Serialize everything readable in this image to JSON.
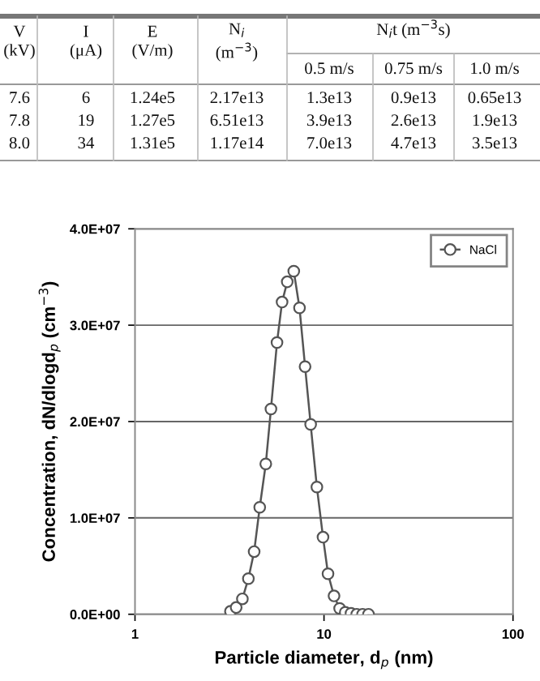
{
  "chart_data": [
    {
      "type": "other",
      "annotations": [
        "V\n(kV)",
        "I\n(μA)",
        "E\n(V/m)",
        "N$_{i}$\n(m$^{−3}$)",
        "N$_{i}$t (m$^{−3}$s)",
        "0.5 m/s",
        "0.75 m/s",
        "1.0 m/s",
        "7.6",
        "6",
        "1.24e5",
        "2.17e13",
        "1.3e13",
        "0.9e13",
        "0.65e13",
        "7.8",
        "19",
        "1.27e5",
        "6.51e13",
        "3.9e13",
        "2.6e13",
        "1.9e13",
        "8.0",
        "34",
        "1.31e5",
        "1.17e14",
        "7.0e13",
        "4.7e13",
        "3.5e13"
      ]
    },
    {
      "type": "line",
      "xlabel": "Particle diameter, d$_{p}$ (nm)",
      "ylabel": "Concentration, dN/dlogd$_{p}$ (cm$^{−3}$)",
      "x": [
        3.2,
        3.43,
        3.7,
        3.98,
        4.27,
        4.57,
        4.92,
        5.24,
        5.64,
        6.0,
        6.39,
        6.92,
        7.42,
        7.94,
        8.5,
        9.17,
        9.88,
        10.5,
        11.3,
        12.1,
        12.96,
        13.9,
        14.9,
        16.0,
        17.2
      ],
      "series": [
        {
          "name": "NaCl",
          "color": "#555555",
          "values": [
            300000,
            700000,
            1600000,
            3700000,
            6500000,
            11100000,
            15600000,
            21300000,
            28200000,
            32400000,
            34500000,
            35600000,
            31800000,
            25700000,
            19700000,
            13200000,
            8000000,
            4200000,
            1900000,
            600000,
            200000,
            100000,
            0,
            0,
            0
          ]
        }
      ],
      "log": "x",
      "xlim": [
        1,
        100
      ],
      "xticks": [
        1,
        10,
        100
      ],
      "ylim": [
        0,
        40000000
      ],
      "yticks": [
        {
          "value": 0,
          "label": "0.0E+00"
        },
        {
          "value": 10000000,
          "label": "1.0E+07"
        },
        {
          "value": 20000000,
          "label": "2.0E+07"
        },
        {
          "value": 30000000,
          "label": "3.0E+07"
        },
        {
          "value": 40000000,
          "label": "4.0E+07"
        }
      ],
      "grid": "y",
      "legend": "top right",
      "marker": "circle",
      "line_style": "solid"
    }
  ]
}
